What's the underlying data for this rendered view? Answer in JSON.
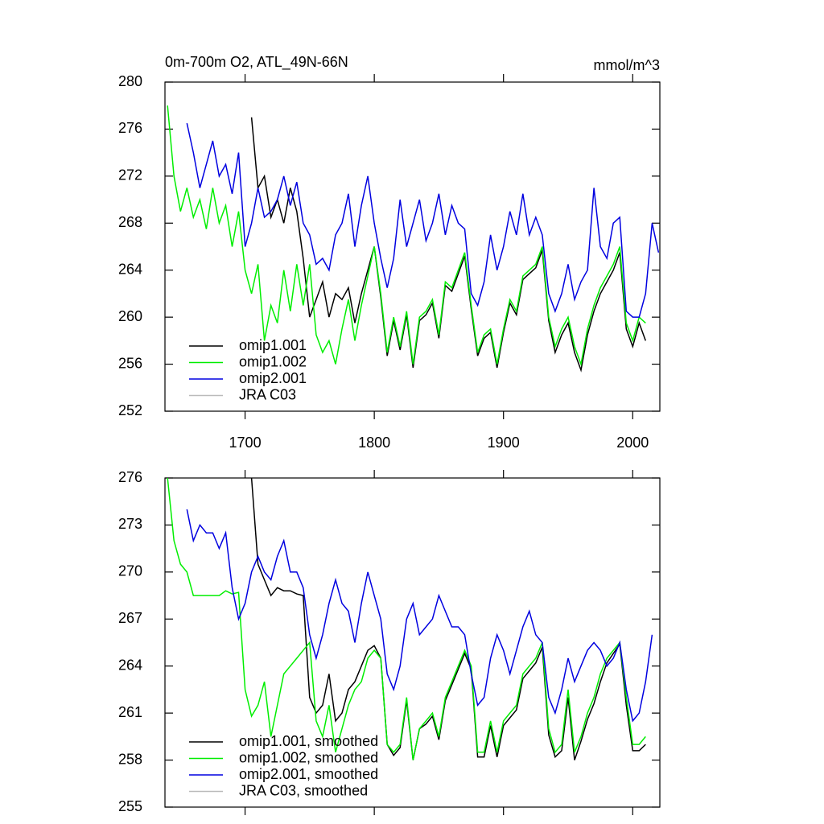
{
  "chart_data": [
    {
      "type": "line",
      "title": "0m-700m O2, ATL_49N-66N",
      "units": "mmol/m^3",
      "x": [
        1640,
        1645,
        1650,
        1655,
        1660,
        1665,
        1670,
        1675,
        1680,
        1685,
        1690,
        1695,
        1700,
        1705,
        1710,
        1715,
        1720,
        1725,
        1730,
        1735,
        1740,
        1745,
        1750,
        1755,
        1760,
        1765,
        1770,
        1775,
        1780,
        1785,
        1790,
        1795,
        1800,
        1805,
        1810,
        1815,
        1820,
        1825,
        1830,
        1835,
        1840,
        1845,
        1850,
        1855,
        1860,
        1865,
        1870,
        1875,
        1880,
        1885,
        1890,
        1895,
        1900,
        1905,
        1910,
        1915,
        1920,
        1925,
        1930,
        1935,
        1940,
        1945,
        1950,
        1955,
        1960,
        1965,
        1970,
        1975,
        1980,
        1985,
        1990,
        1995,
        2000,
        2005,
        2010,
        2015,
        2020
      ],
      "xlim": [
        1638,
        2021
      ],
      "xticks": [
        1700,
        1800,
        1900,
        2000
      ],
      "ylim": [
        252,
        280
      ],
      "yticks": [
        252,
        256,
        260,
        264,
        268,
        272,
        276,
        280
      ],
      "legend": "lower left",
      "series": [
        {
          "name": "omip1.001",
          "color": "#000000",
          "values": [
            null,
            null,
            null,
            null,
            null,
            null,
            null,
            null,
            null,
            null,
            null,
            null,
            null,
            277,
            271,
            272,
            268.5,
            270,
            268,
            271,
            269,
            265,
            260,
            261.5,
            263,
            260,
            262,
            261.5,
            262.5,
            259.5,
            262,
            264,
            266,
            261.7,
            256.7,
            259.7,
            257.2,
            260.2,
            255.7,
            259.7,
            260.2,
            261.2,
            258.2,
            262.7,
            262.2,
            263.7,
            265.2,
            260.7,
            256.7,
            258.2,
            258.7,
            255.7,
            258.7,
            261.2,
            260.2,
            263.2,
            263.7,
            264.2,
            265.7,
            259.7,
            257,
            258.5,
            259.5,
            257,
            255.5,
            258.5,
            260.5,
            262,
            263,
            264,
            265.5,
            259,
            257.5,
            259.5,
            258,
            null,
            null
          ]
        },
        {
          "name": "omip1.002",
          "color": "#00ee00",
          "values": [
            278,
            272,
            269,
            271,
            268.5,
            270,
            267.5,
            271,
            268,
            269.5,
            266,
            269,
            264,
            262,
            264.5,
            258,
            261,
            259.5,
            264,
            260.5,
            264.5,
            261,
            264.5,
            258.5,
            257,
            258,
            256,
            259,
            261.5,
            258,
            261,
            263.5,
            266,
            262,
            257,
            260,
            257.5,
            260.5,
            256,
            260,
            260.5,
            261.5,
            258.5,
            263,
            262.5,
            264,
            265.5,
            261,
            257,
            258.5,
            259,
            256,
            259,
            261.5,
            260.5,
            263.5,
            264,
            264.5,
            266,
            260,
            257.5,
            259,
            260,
            257.5,
            256,
            259,
            261,
            262.5,
            263.5,
            264.5,
            266,
            259.5,
            258,
            260,
            259.5,
            null,
            null
          ]
        },
        {
          "name": "omip2.001",
          "color": "#0000e0",
          "values": [
            null,
            null,
            null,
            276.5,
            274,
            271,
            273,
            275,
            272,
            273,
            270.5,
            274,
            266,
            268,
            271,
            268.5,
            269,
            270,
            272,
            269.5,
            271.5,
            268,
            267,
            264.5,
            265,
            264,
            267,
            268,
            270.5,
            266,
            269.5,
            272,
            268,
            265,
            262.5,
            265,
            270,
            266,
            268,
            270,
            266.5,
            268,
            270.5,
            267,
            269.5,
            268,
            267.5,
            262,
            261,
            263,
            267,
            264,
            266,
            269,
            267,
            270.5,
            267,
            268.5,
            267,
            262,
            260.5,
            262,
            264.5,
            261.5,
            263,
            264,
            271,
            266,
            265,
            268,
            268.5,
            260.5,
            260,
            260,
            262,
            268,
            265.5
          ]
        },
        {
          "name": "JRA C03",
          "color": "#bbbbbb",
          "values": [
            null,
            null,
            null,
            null,
            null,
            null,
            null,
            null,
            null,
            null,
            null,
            null,
            null,
            null,
            null,
            null,
            null,
            null,
            null,
            null,
            null,
            null,
            null,
            null,
            null,
            null,
            null,
            null,
            null,
            null,
            null,
            null,
            null,
            null,
            null,
            null,
            null,
            null,
            null,
            null,
            null,
            null,
            null,
            null,
            null,
            null,
            null,
            null,
            null,
            null,
            null,
            null,
            null,
            null,
            null,
            null,
            null,
            null,
            null,
            null,
            null,
            null,
            null,
            null,
            null,
            null,
            null,
            null,
            null,
            null,
            null,
            null,
            null,
            null,
            null,
            null,
            null
          ]
        }
      ]
    },
    {
      "type": "line",
      "x": [
        1640,
        1645,
        1650,
        1655,
        1660,
        1665,
        1670,
        1675,
        1680,
        1685,
        1690,
        1695,
        1700,
        1705,
        1710,
        1715,
        1720,
        1725,
        1730,
        1735,
        1740,
        1745,
        1750,
        1755,
        1760,
        1765,
        1770,
        1775,
        1780,
        1785,
        1790,
        1795,
        1800,
        1805,
        1810,
        1815,
        1820,
        1825,
        1830,
        1835,
        1840,
        1845,
        1850,
        1855,
        1860,
        1865,
        1870,
        1875,
        1880,
        1885,
        1890,
        1895,
        1900,
        1905,
        1910,
        1915,
        1920,
        1925,
        1930,
        1935,
        1940,
        1945,
        1950,
        1955,
        1960,
        1965,
        1970,
        1975,
        1980,
        1985,
        1990,
        1995,
        2000,
        2005,
        2010,
        2015,
        2020
      ],
      "xlim": [
        1638,
        2021
      ],
      "xticks": [
        1700,
        1800,
        1900,
        2000
      ],
      "ylim": [
        255,
        276
      ],
      "yticks": [
        255,
        258,
        261,
        264,
        267,
        270,
        273,
        276
      ],
      "legend": "lower left",
      "series": [
        {
          "name": "omip1.001, smoothed",
          "color": "#000000",
          "values": [
            null,
            null,
            null,
            null,
            null,
            null,
            null,
            null,
            null,
            null,
            null,
            null,
            null,
            276,
            270.5,
            269.5,
            268.5,
            269,
            268.8,
            268.8,
            268.6,
            268.5,
            262,
            261,
            261.5,
            263.5,
            260.5,
            261,
            262.5,
            263,
            264,
            265,
            265.3,
            264.5,
            259,
            258.3,
            258.8,
            261.8,
            258,
            260,
            260.3,
            260.8,
            259.3,
            261.8,
            262.8,
            263.8,
            264.8,
            263.8,
            258.2,
            258.2,
            260.2,
            258.2,
            260.2,
            260.7,
            261.2,
            263.2,
            263.7,
            264.2,
            265.2,
            259.6,
            258.2,
            258.6,
            262,
            258,
            259.2,
            260.6,
            261.6,
            263,
            264.2,
            264.8,
            265.4,
            261.5,
            258.6,
            258.6,
            259,
            null,
            null
          ]
        },
        {
          "name": "omip1.002, smoothed",
          "color": "#00ee00",
          "values": [
            276,
            272,
            270.5,
            270,
            268.5,
            268.5,
            268.5,
            268.5,
            268.5,
            268.8,
            268.6,
            268.7,
            262.5,
            260.8,
            261.5,
            263,
            259.5,
            261.5,
            263.5,
            264,
            264.5,
            265,
            265.5,
            260.5,
            259.5,
            261.5,
            258.5,
            260,
            261.5,
            262.5,
            263,
            264.5,
            265,
            264.5,
            259,
            258.5,
            259,
            262,
            258,
            260,
            260.5,
            261,
            259.5,
            262,
            263,
            264,
            265,
            264,
            258.5,
            258.5,
            260.5,
            258.5,
            260.5,
            261,
            261.5,
            263.5,
            264,
            264.5,
            265.5,
            260,
            258.5,
            259,
            262.5,
            258.5,
            259.5,
            261,
            262,
            263.5,
            264.5,
            265,
            265.5,
            262,
            259,
            259,
            259.5,
            null,
            null
          ]
        },
        {
          "name": "omip2.001, smoothed",
          "color": "#0000e0",
          "values": [
            null,
            null,
            null,
            274,
            272,
            273,
            272.5,
            272.5,
            271.5,
            272.5,
            269,
            267,
            268,
            270,
            271,
            270,
            269.5,
            271,
            272,
            270,
            270,
            269,
            266,
            264.5,
            266,
            268,
            269.5,
            268,
            267.5,
            265.5,
            268,
            270,
            268.5,
            267,
            263.5,
            262.5,
            264,
            267,
            268,
            266,
            266.5,
            267,
            268.5,
            267.5,
            266.5,
            266.5,
            266,
            263.5,
            261.5,
            262,
            264.5,
            266,
            265,
            263.5,
            265,
            266.5,
            267.5,
            266,
            265.5,
            262,
            261,
            262.5,
            264.5,
            263,
            264,
            265,
            265.5,
            265,
            264,
            264.5,
            265.5,
            262.5,
            260.5,
            261,
            263,
            266,
            null
          ]
        },
        {
          "name": "JRA C03, smoothed",
          "color": "#bbbbbb",
          "values": [
            null,
            null,
            null,
            null,
            null,
            null,
            null,
            null,
            null,
            null,
            null,
            null,
            null,
            null,
            null,
            null,
            null,
            null,
            null,
            null,
            null,
            null,
            null,
            null,
            null,
            null,
            null,
            null,
            null,
            null,
            null,
            null,
            null,
            null,
            null,
            null,
            null,
            null,
            null,
            null,
            null,
            null,
            null,
            null,
            null,
            null,
            null,
            null,
            null,
            null,
            null,
            null,
            null,
            null,
            null,
            null,
            null,
            null,
            null,
            null,
            null,
            null,
            null,
            null,
            null,
            null,
            null,
            null,
            null,
            null,
            null,
            null,
            null,
            null,
            null,
            null,
            null
          ]
        }
      ]
    }
  ]
}
